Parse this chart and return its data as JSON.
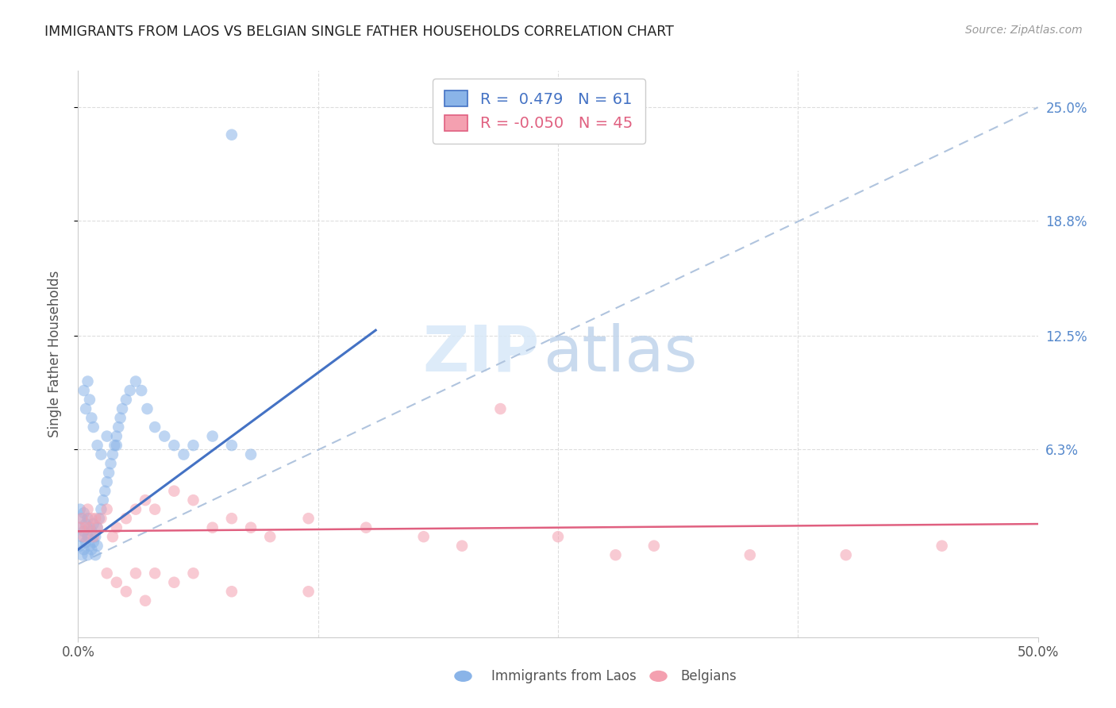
{
  "title": "IMMIGRANTS FROM LAOS VS BELGIAN SINGLE FATHER HOUSEHOLDS CORRELATION CHART",
  "source": "Source: ZipAtlas.com",
  "ylabel": "Single Father Households",
  "legend_blue_label": "Immigrants from Laos",
  "legend_pink_label": "Belgians",
  "R_blue": "0.479",
  "N_blue": "61",
  "R_pink": "-0.050",
  "N_pink": "45",
  "blue_scatter_color": "#8AB4E8",
  "pink_scatter_color": "#F4A0B0",
  "blue_line_color": "#4472C4",
  "pink_line_color": "#E06080",
  "dashed_line_color": "#B0C4DE",
  "grid_color": "#DDDDDD",
  "title_color": "#222222",
  "source_color": "#999999",
  "ylabel_color": "#555555",
  "tick_color": "#555555",
  "right_tick_color": "#5588CC",
  "xlim_min": 0.0,
  "xlim_max": 0.5,
  "ylim_min": -0.04,
  "ylim_max": 0.27,
  "yticks": [
    0.063,
    0.125,
    0.188,
    0.25
  ],
  "ytick_labels_right": [
    "6.3%",
    "12.5%",
    "18.8%",
    "25.0%"
  ],
  "xtick_labels": [
    "0.0%",
    "50.0%"
  ],
  "xtick_vals": [
    0.0,
    0.5
  ],
  "blue_line_x": [
    0.0,
    0.155
  ],
  "blue_line_y": [
    0.008,
    0.128
  ],
  "pink_line_x": [
    0.0,
    0.5
  ],
  "pink_line_y": [
    0.018,
    0.022
  ],
  "dash_line_x": [
    0.0,
    0.5
  ],
  "dash_line_y": [
    0.0,
    0.25
  ],
  "watermark_zip_color": "#D8E8F8",
  "watermark_atlas_color": "#C0D4EC",
  "blue_scatter_x": [
    0.001,
    0.001,
    0.001,
    0.002,
    0.002,
    0.002,
    0.003,
    0.003,
    0.003,
    0.004,
    0.004,
    0.005,
    0.005,
    0.005,
    0.006,
    0.006,
    0.007,
    0.007,
    0.008,
    0.008,
    0.009,
    0.009,
    0.01,
    0.01,
    0.011,
    0.012,
    0.013,
    0.014,
    0.015,
    0.016,
    0.017,
    0.018,
    0.019,
    0.02,
    0.021,
    0.022,
    0.023,
    0.025,
    0.027,
    0.03,
    0.033,
    0.036,
    0.04,
    0.045,
    0.05,
    0.055,
    0.06,
    0.07,
    0.08,
    0.09,
    0.003,
    0.004,
    0.005,
    0.006,
    0.007,
    0.008,
    0.01,
    0.012,
    0.015,
    0.02,
    0.08
  ],
  "blue_scatter_y": [
    0.01,
    0.02,
    0.03,
    0.005,
    0.015,
    0.025,
    0.008,
    0.018,
    0.028,
    0.012,
    0.022,
    0.005,
    0.015,
    0.025,
    0.01,
    0.02,
    0.008,
    0.018,
    0.012,
    0.022,
    0.005,
    0.015,
    0.01,
    0.02,
    0.025,
    0.03,
    0.035,
    0.04,
    0.045,
    0.05,
    0.055,
    0.06,
    0.065,
    0.07,
    0.075,
    0.08,
    0.085,
    0.09,
    0.095,
    0.1,
    0.095,
    0.085,
    0.075,
    0.07,
    0.065,
    0.06,
    0.065,
    0.07,
    0.065,
    0.06,
    0.095,
    0.085,
    0.1,
    0.09,
    0.08,
    0.075,
    0.065,
    0.06,
    0.07,
    0.065,
    0.235
  ],
  "pink_scatter_x": [
    0.001,
    0.002,
    0.003,
    0.004,
    0.005,
    0.006,
    0.007,
    0.008,
    0.009,
    0.01,
    0.012,
    0.015,
    0.018,
    0.02,
    0.025,
    0.03,
    0.035,
    0.04,
    0.05,
    0.06,
    0.07,
    0.08,
    0.09,
    0.1,
    0.12,
    0.15,
    0.18,
    0.2,
    0.22,
    0.25,
    0.28,
    0.3,
    0.35,
    0.4,
    0.45,
    0.015,
    0.02,
    0.025,
    0.03,
    0.035,
    0.04,
    0.05,
    0.06,
    0.08,
    0.12
  ],
  "pink_scatter_y": [
    0.02,
    0.025,
    0.015,
    0.02,
    0.03,
    0.02,
    0.025,
    0.015,
    0.025,
    0.02,
    0.025,
    0.03,
    0.015,
    0.02,
    0.025,
    0.03,
    0.035,
    0.03,
    0.04,
    0.035,
    0.02,
    0.025,
    0.02,
    0.015,
    0.025,
    0.02,
    0.015,
    0.01,
    0.085,
    0.015,
    0.005,
    0.01,
    0.005,
    0.005,
    0.01,
    -0.005,
    -0.01,
    -0.015,
    -0.005,
    -0.02,
    -0.005,
    -0.01,
    -0.005,
    -0.015,
    -0.015
  ]
}
